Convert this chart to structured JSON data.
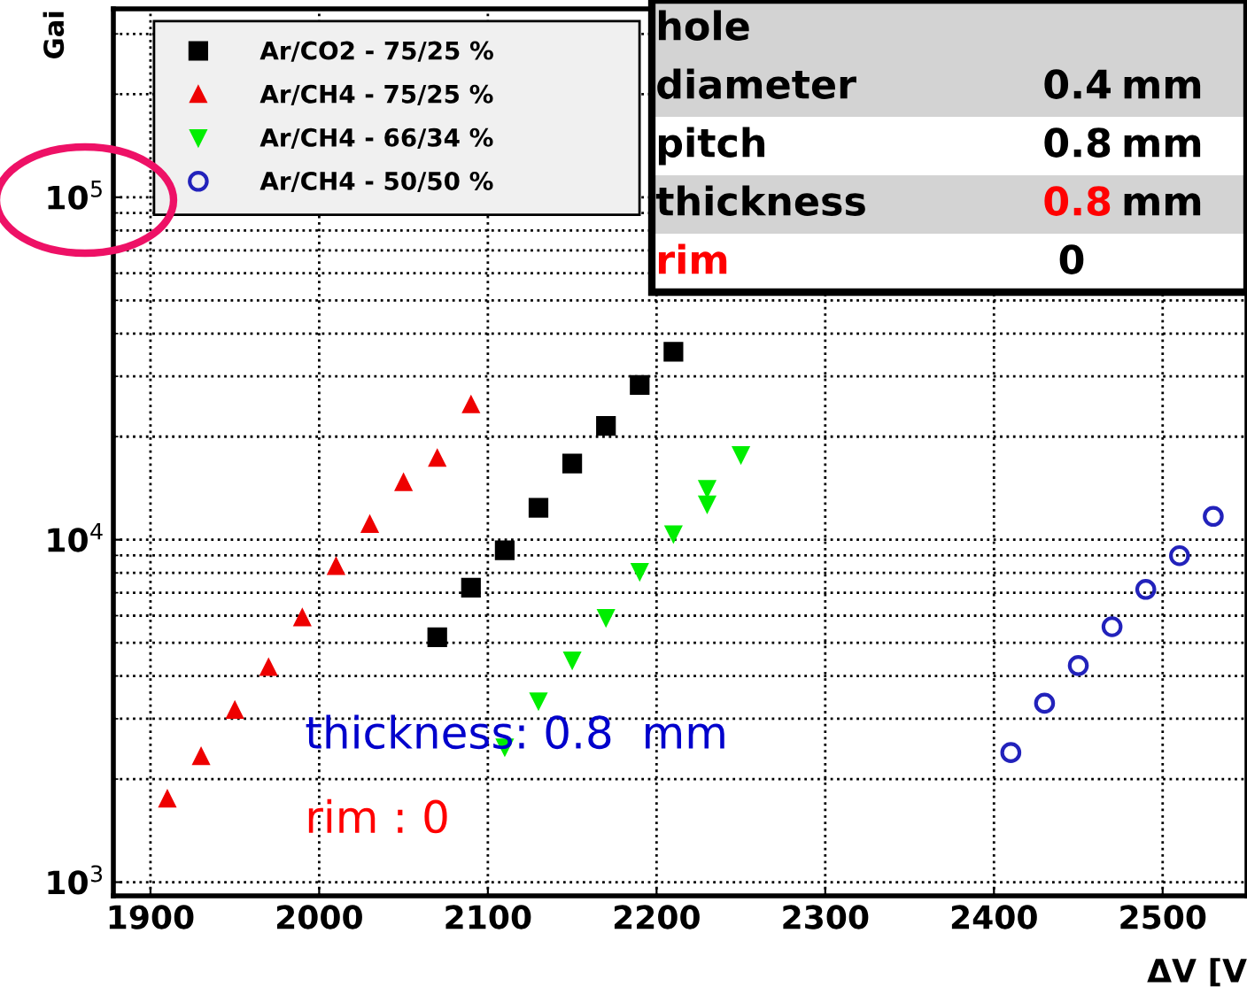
{
  "chart_data": {
    "type": "scatter",
    "xlabel": "ΔV [V",
    "ylabel": "Gai",
    "log": "y",
    "xlim": [
      1878,
      2550
    ],
    "xticks": [
      1900,
      2000,
      2100,
      2200,
      2300,
      2400,
      2500
    ],
    "ylim": [
      912,
      355000
    ],
    "yticks": [
      {
        "value": 1000,
        "label": "10$^{3}$"
      },
      {
        "value": 10000,
        "label": "10$^{4}$"
      },
      {
        "value": 100000,
        "label": "10$^{5}$"
      }
    ],
    "grid": true,
    "legend": "top left",
    "series": [
      {
        "name": "Ar/CO2 - 75/25 %",
        "color": "#000000",
        "marker": "square",
        "x": [
          2070,
          2090,
          2110,
          2130,
          2150,
          2170,
          2190,
          2210
        ],
        "values": [
          5190,
          7240,
          9310,
          12400,
          16700,
          21500,
          28300,
          35400
        ]
      },
      {
        "name": "Ar/CH4 - 75/25 %",
        "color": "#ee0000",
        "marker": "triangle",
        "x": [
          1910,
          1930,
          1950,
          1970,
          1990,
          2010,
          2030,
          2050,
          2070,
          2090
        ],
        "values": [
          1750,
          2330,
          3180,
          4240,
          5920,
          8360,
          11100,
          14700,
          17300,
          24800
        ]
      },
      {
        "name": "Ar/CH4 - 66/34 %",
        "color": "#00ee00",
        "marker": "triangle_down",
        "x": [
          2110,
          2130,
          2150,
          2170,
          2190,
          2210,
          2230,
          2230,
          2250
        ],
        "values": [
          2480,
          3380,
          4450,
          5920,
          8070,
          10400,
          12700,
          14100,
          17700
        ]
      },
      {
        "name": "Ar/CH4 - 50/50 %",
        "color": "#2222bb",
        "marker": "circle_open",
        "x": [
          2410,
          2430,
          2450,
          2470,
          2490,
          2510,
          2530
        ],
        "values": [
          2390,
          3330,
          4290,
          5570,
          7160,
          8980,
          11700
        ]
      }
    ],
    "annotations": [
      "hole",
      "diameter",
      "0.4",
      "mm",
      "pitch",
      "0.8",
      "mm",
      "thickness",
      "0.8",
      "mm",
      "rim",
      "0",
      "thickness: 0.8  mm",
      "rim : 0"
    ]
  }
}
